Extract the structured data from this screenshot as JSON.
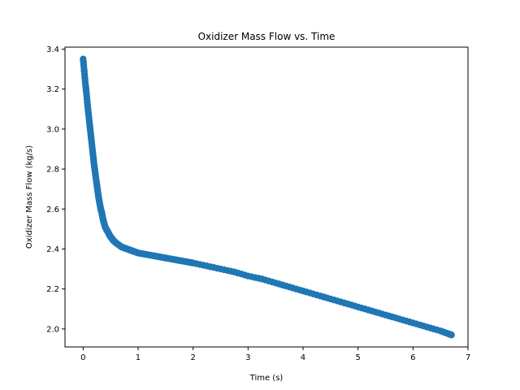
{
  "chart_data": {
    "type": "scatter",
    "title": "Oxidizer Mass Flow vs. Time",
    "xlabel": "Time (s)",
    "ylabel": "Oxidizer Mass Flow (kg/s)",
    "xlim": [
      -0.33,
      7.0
    ],
    "ylim": [
      1.91,
      3.41
    ],
    "xticks": [
      0,
      1,
      2,
      3,
      4,
      5,
      6,
      7
    ],
    "yticks": [
      2.0,
      2.2,
      2.4,
      2.6,
      2.8,
      3.0,
      3.2,
      3.4
    ],
    "ytick_labels": [
      "2.0",
      "2.2",
      "2.4",
      "2.6",
      "2.8",
      "3.0",
      "3.2",
      "3.4"
    ],
    "grid": false,
    "legend": "none",
    "marker_color": "#1f77b4",
    "series": [
      {
        "x": [
          0.0,
          0.02,
          0.04,
          0.06,
          0.08,
          0.1,
          0.12,
          0.14,
          0.16,
          0.18,
          0.2,
          0.22,
          0.24,
          0.26,
          0.28,
          0.3,
          0.32,
          0.34,
          0.36,
          0.38,
          0.4,
          0.42,
          0.44,
          0.46,
          0.48,
          0.5,
          0.52,
          0.54,
          0.56,
          0.58,
          0.6,
          0.65,
          0.7,
          0.75,
          0.8,
          0.85,
          0.9,
          0.95,
          1.0,
          1.1,
          1.2,
          1.3,
          1.4,
          1.5,
          1.6,
          1.7,
          1.8,
          1.9,
          2.0,
          2.25,
          2.5,
          2.75,
          3.0,
          3.25,
          3.5,
          3.75,
          4.0,
          4.25,
          4.5,
          4.75,
          5.0,
          5.25,
          5.5,
          5.75,
          6.0,
          6.25,
          6.5,
          6.65,
          6.7
        ],
        "y": [
          3.35,
          3.29,
          3.23,
          3.18,
          3.12,
          3.07,
          3.02,
          2.97,
          2.92,
          2.87,
          2.82,
          2.78,
          2.74,
          2.7,
          2.66,
          2.63,
          2.6,
          2.58,
          2.55,
          2.53,
          2.51,
          2.5,
          2.49,
          2.48,
          2.47,
          2.46,
          2.455,
          2.445,
          2.44,
          2.435,
          2.43,
          2.42,
          2.41,
          2.405,
          2.4,
          2.395,
          2.39,
          2.385,
          2.38,
          2.375,
          2.37,
          2.365,
          2.36,
          2.355,
          2.35,
          2.345,
          2.34,
          2.335,
          2.33,
          2.315,
          2.3,
          2.285,
          2.265,
          2.25,
          2.23,
          2.21,
          2.19,
          2.17,
          2.15,
          2.13,
          2.11,
          2.09,
          2.07,
          2.05,
          2.03,
          2.01,
          1.99,
          1.975,
          1.97
        ]
      }
    ]
  }
}
